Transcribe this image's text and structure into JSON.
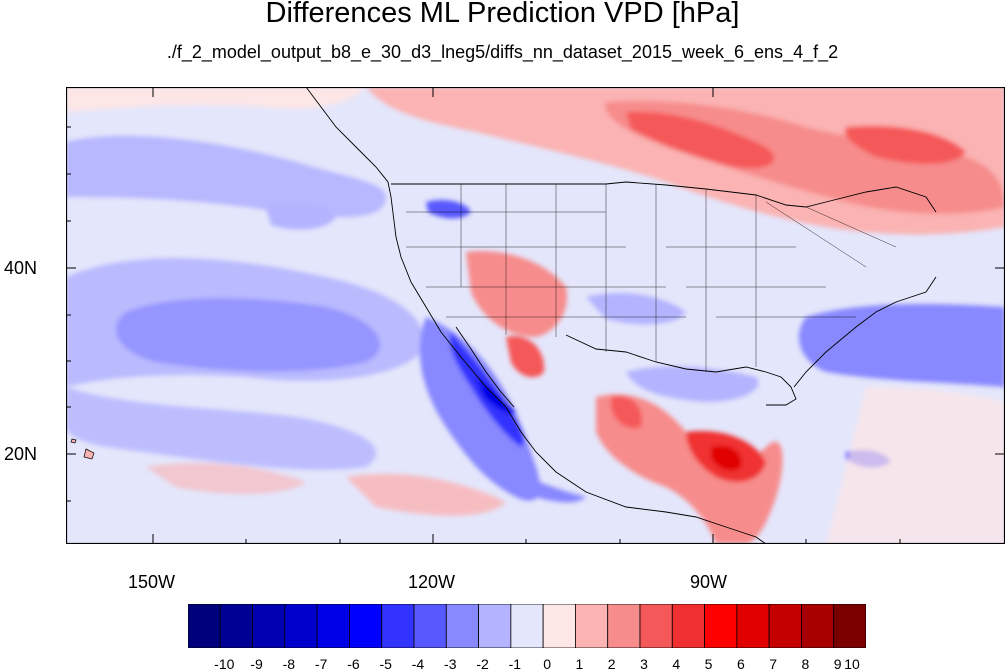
{
  "title": "Differences ML Prediction VPD [hPa]",
  "subtitle": "./f_2_model_output_b8_e_30_d3_lneg5/diffs_nn_dataset_2015_week_6_ens_4_f_2",
  "map": {
    "region": "North Pacific and North America",
    "lon_range": [
      -160,
      -60
    ],
    "lat_range": [
      10,
      58
    ],
    "lat_labels": [
      "40N",
      "20N"
    ],
    "lon_labels": [
      "150W",
      "120W",
      "90W"
    ],
    "coastline_color": "#000000",
    "boundaries": [
      "US states",
      "Canadian provinces",
      "Mexico"
    ]
  },
  "colorbar": {
    "labels": [
      "-10",
      "-9",
      "-8",
      "-7",
      "-6",
      "-5",
      "-4",
      "-3",
      "-2",
      "-1",
      "0",
      "1",
      "2",
      "3",
      "4",
      "5",
      "6",
      "7",
      "8",
      "9",
      "10"
    ],
    "colors": [
      "#00007a",
      "#000095",
      "#0000b0",
      "#0000cc",
      "#0000e6",
      "#0000ff",
      "#3333ff",
      "#5858ff",
      "#8888ff",
      "#b3b3ff",
      "#e4e6fb",
      "#fde6e6",
      "#fbb3b3",
      "#f78c8c",
      "#f55858",
      "#f03030",
      "#ff0000",
      "#e00000",
      "#c40000",
      "#a80000",
      "#7a0000"
    ]
  }
}
